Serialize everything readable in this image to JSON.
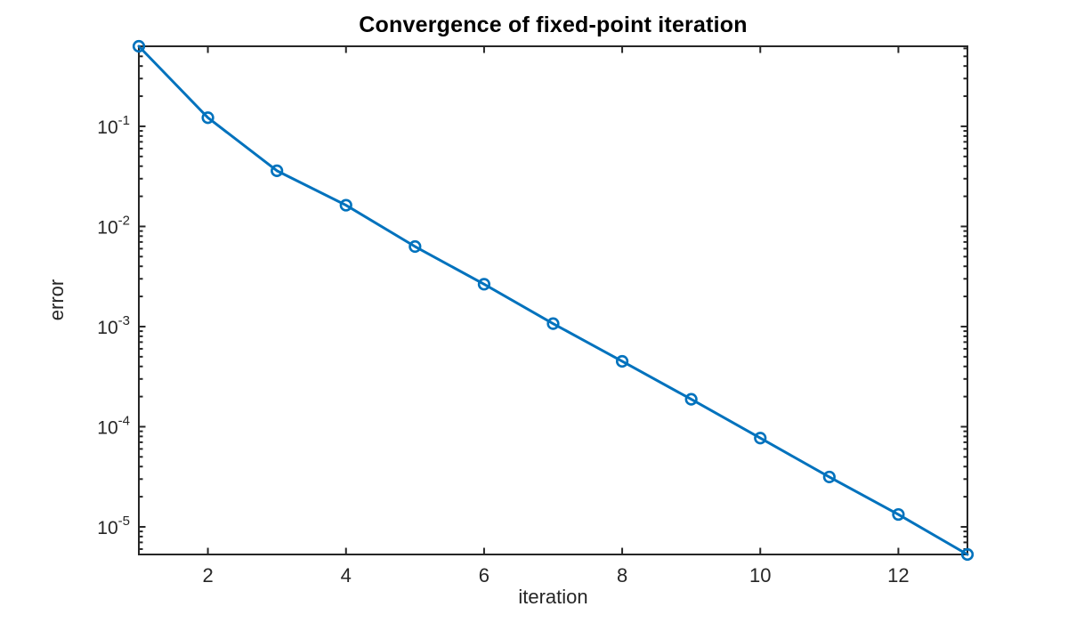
{
  "chart_data": {
    "type": "line",
    "title": "Convergence of fixed-point iteration",
    "xlabel": "iteration",
    "ylabel": "error",
    "yscale": "log",
    "x": [
      1,
      2,
      3,
      4,
      5,
      6,
      7,
      8,
      9,
      10,
      11,
      12,
      13
    ],
    "series": [
      {
        "name": "error",
        "values": [
          0.63,
          0.122,
          0.036,
          0.0163,
          0.0063,
          0.00265,
          0.00107,
          0.00045,
          0.000188,
          7.7e-05,
          3.15e-05,
          1.33e-05,
          5.3e-06
        ]
      }
    ],
    "xlim": [
      1,
      13
    ],
    "ylim": [
      5.3e-06,
      0.63
    ],
    "xticks": [
      2,
      4,
      6,
      8,
      10,
      12
    ],
    "ytick_exponents": [
      -1,
      -2,
      -3,
      -4,
      -5
    ],
    "ytick_base": "10",
    "grid": false,
    "legend": null,
    "line_color": "#0072BD",
    "marker": "open-circle",
    "axis_color": "#262626",
    "tick_label_color": "#262626",
    "background": "#ffffff"
  }
}
